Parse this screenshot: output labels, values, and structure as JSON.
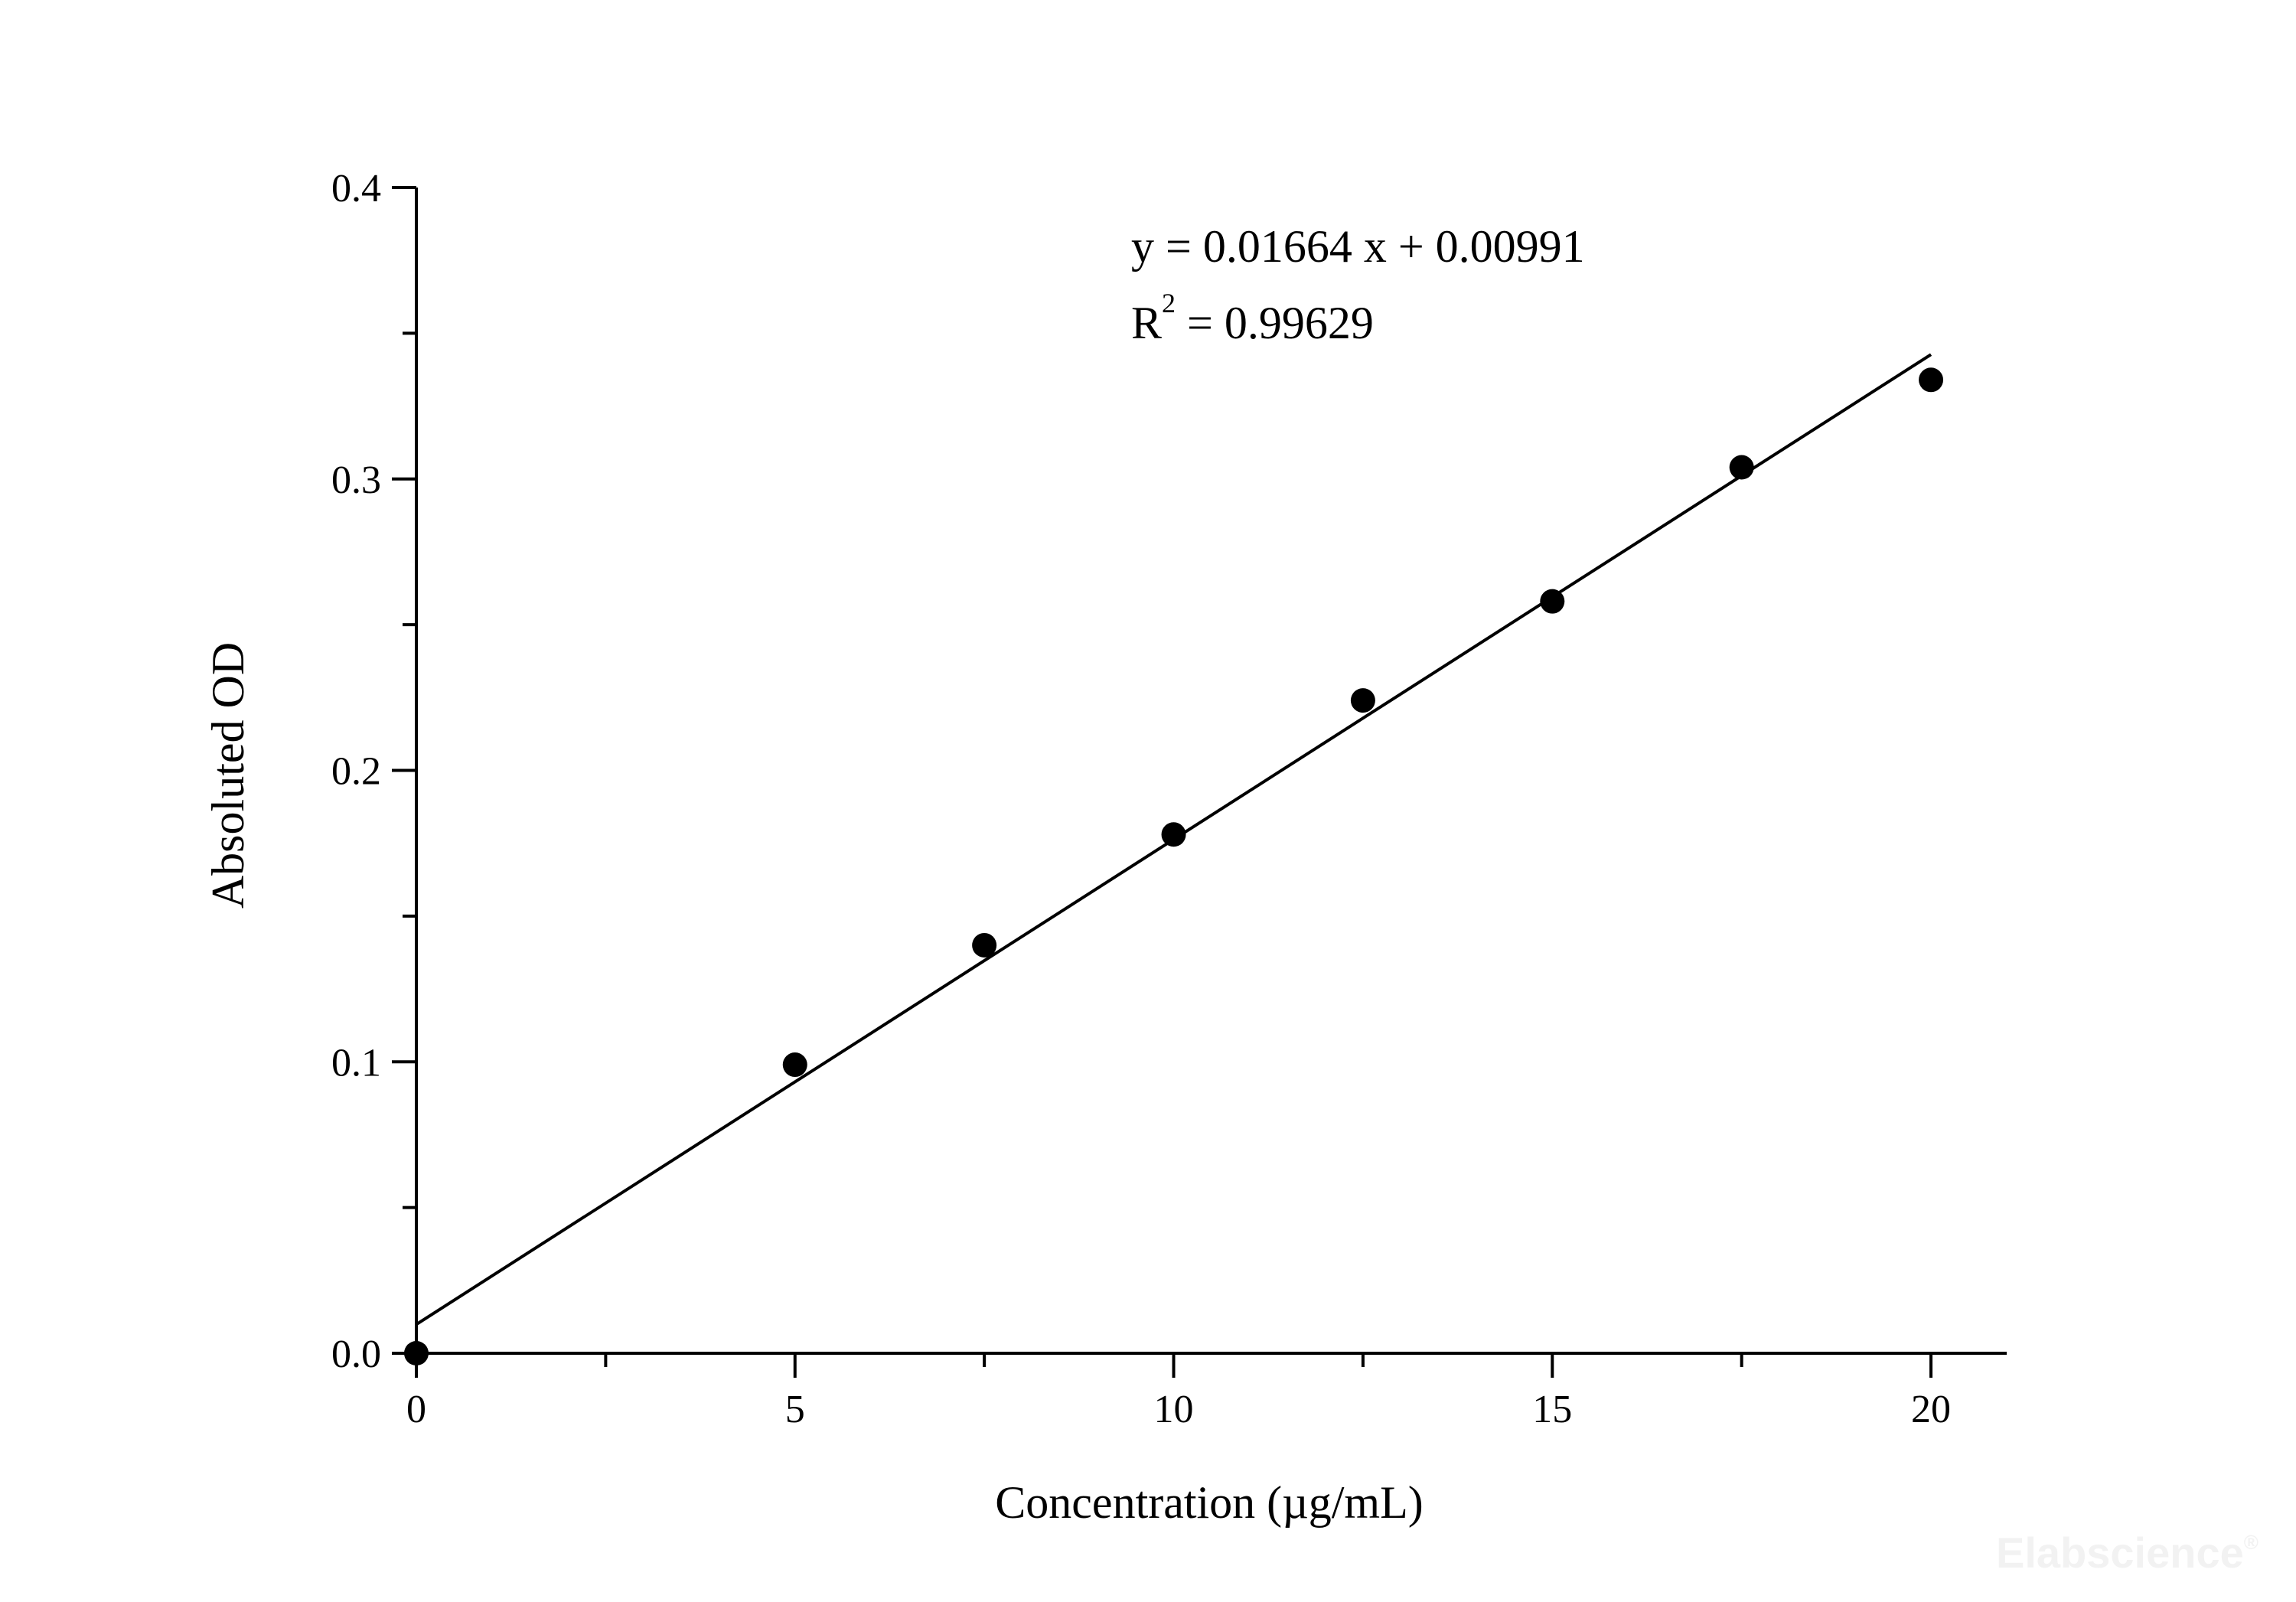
{
  "chart_data": {
    "type": "scatter",
    "xlabel": "Concentration (µg/mL)",
    "ylabel": "Absoluted OD",
    "xlim": [
      0,
      21
    ],
    "ylim": [
      0,
      0.4
    ],
    "x_ticks": [
      "0",
      "5",
      "10",
      "15",
      "20"
    ],
    "y_ticks": [
      "0.0",
      "0.1",
      "0.2",
      "0.3",
      "0.4"
    ],
    "series": [
      {
        "x": [
          0,
          5,
          7.5,
          10,
          12.5,
          15,
          17.5,
          20
        ],
        "y": [
          0.0,
          0.099,
          0.14,
          0.178,
          0.224,
          0.258,
          0.304,
          0.334
        ]
      }
    ],
    "fit": {
      "slope": 0.01664,
      "intercept": 0.00991,
      "x_range": [
        0,
        20
      ]
    },
    "equation": "y = 0.01664 x + 0.00991",
    "r2_prefix": "R",
    "r2_sup": "2",
    "r2_value": " = 0.99629",
    "grid": false,
    "marker_color": "#000000",
    "line_color": "#000000"
  },
  "watermark": "Elabscience",
  "watermark_mark": "®"
}
